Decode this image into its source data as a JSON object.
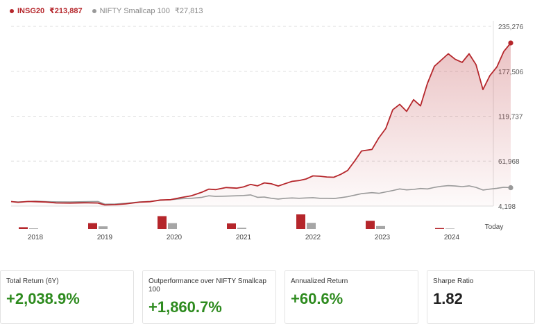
{
  "legend": {
    "primary": {
      "name": "INSG20",
      "value": "₹213,887",
      "color": "#b5262b"
    },
    "secondary": {
      "name": "NIFTY Smallcap 100",
      "value": "₹27,813",
      "color": "#999999"
    }
  },
  "chart_data": {
    "type": "line",
    "y_ticks": [
      "235,276",
      "177,506",
      "119,737",
      "61,968",
      "4,198"
    ],
    "y_tick_values": [
      235276,
      177506,
      119737,
      61968,
      4198
    ],
    "ylim": [
      4198,
      235276
    ],
    "x_labels": [
      "2018",
      "2019",
      "2020",
      "2021",
      "2022",
      "2023",
      "2024",
      "Today"
    ],
    "x_label_positions": [
      2018.0,
      2019.0,
      2020.0,
      2021.0,
      2022.0,
      2023.0,
      2024.0,
      2024.55
    ],
    "xlim": [
      2017.65,
      2024.6
    ],
    "series": [
      {
        "name": "INSG20",
        "color": "#b5262b",
        "points": [
          [
            2017.65,
            10000
          ],
          [
            2017.75,
            9000
          ],
          [
            2017.9,
            10100
          ],
          [
            2018.0,
            9800
          ],
          [
            2018.15,
            9400
          ],
          [
            2018.3,
            8200
          ],
          [
            2018.5,
            8000
          ],
          [
            2018.7,
            8400
          ],
          [
            2018.9,
            8100
          ],
          [
            2019.0,
            5600
          ],
          [
            2019.15,
            6000
          ],
          [
            2019.3,
            7000
          ],
          [
            2019.5,
            9200
          ],
          [
            2019.65,
            9800
          ],
          [
            2019.8,
            12000
          ],
          [
            2019.95,
            12400
          ],
          [
            2020.1,
            15200
          ],
          [
            2020.25,
            17500
          ],
          [
            2020.4,
            22000
          ],
          [
            2020.5,
            26000
          ],
          [
            2020.6,
            25300
          ],
          [
            2020.75,
            28000
          ],
          [
            2020.9,
            27200
          ],
          [
            2021.0,
            28800
          ],
          [
            2021.1,
            32000
          ],
          [
            2021.2,
            30200
          ],
          [
            2021.3,
            34000
          ],
          [
            2021.4,
            32800
          ],
          [
            2021.5,
            30000
          ],
          [
            2021.6,
            33000
          ],
          [
            2021.7,
            36000
          ],
          [
            2021.8,
            37000
          ],
          [
            2021.9,
            39000
          ],
          [
            2022.0,
            43000
          ],
          [
            2022.1,
            42600
          ],
          [
            2022.2,
            41600
          ],
          [
            2022.3,
            41200
          ],
          [
            2022.4,
            45000
          ],
          [
            2022.5,
            50000
          ],
          [
            2022.6,
            62000
          ],
          [
            2022.7,
            75000
          ],
          [
            2022.85,
            77000
          ],
          [
            2022.95,
            92000
          ],
          [
            2023.05,
            104000
          ],
          [
            2023.15,
            128000
          ],
          [
            2023.25,
            135000
          ],
          [
            2023.35,
            126000
          ],
          [
            2023.45,
            141000
          ],
          [
            2023.55,
            133000
          ],
          [
            2023.65,
            162000
          ],
          [
            2023.75,
            184000
          ],
          [
            2023.85,
            192000
          ],
          [
            2023.95,
            200000
          ],
          [
            2024.05,
            193000
          ],
          [
            2024.15,
            189000
          ],
          [
            2024.25,
            200000
          ],
          [
            2024.35,
            186000
          ],
          [
            2024.45,
            154000
          ],
          [
            2024.55,
            172000
          ],
          [
            2024.65,
            183000
          ],
          [
            2024.75,
            203000
          ],
          [
            2024.85,
            213887
          ]
        ]
      },
      {
        "name": "NIFTY Smallcap 100",
        "color": "#999999",
        "points": [
          [
            2017.65,
            10000
          ],
          [
            2017.75,
            9500
          ],
          [
            2017.9,
            10100
          ],
          [
            2018.0,
            10500
          ],
          [
            2018.15,
            10000
          ],
          [
            2018.3,
            9600
          ],
          [
            2018.5,
            9500
          ],
          [
            2018.7,
            9800
          ],
          [
            2018.9,
            10100
          ],
          [
            2019.0,
            6600
          ],
          [
            2019.15,
            6800
          ],
          [
            2019.3,
            7800
          ],
          [
            2019.5,
            9500
          ],
          [
            2019.65,
            10200
          ],
          [
            2019.8,
            11600
          ],
          [
            2019.95,
            12400
          ],
          [
            2020.1,
            13600
          ],
          [
            2020.25,
            14200
          ],
          [
            2020.4,
            15400
          ],
          [
            2020.5,
            17400
          ],
          [
            2020.6,
            16600
          ],
          [
            2020.75,
            17000
          ],
          [
            2020.9,
            17400
          ],
          [
            2021.0,
            17800
          ],
          [
            2021.1,
            18600
          ],
          [
            2021.2,
            15400
          ],
          [
            2021.3,
            15800
          ],
          [
            2021.4,
            14200
          ],
          [
            2021.5,
            13200
          ],
          [
            2021.6,
            14200
          ],
          [
            2021.7,
            14600
          ],
          [
            2021.8,
            14200
          ],
          [
            2021.9,
            14600
          ],
          [
            2022.0,
            15000
          ],
          [
            2022.1,
            14200
          ],
          [
            2022.2,
            14200
          ],
          [
            2022.3,
            13800
          ],
          [
            2022.4,
            15000
          ],
          [
            2022.5,
            16200
          ],
          [
            2022.6,
            18200
          ],
          [
            2022.7,
            20200
          ],
          [
            2022.85,
            21400
          ],
          [
            2022.95,
            20600
          ],
          [
            2023.05,
            22400
          ],
          [
            2023.15,
            24200
          ],
          [
            2023.25,
            26200
          ],
          [
            2023.35,
            25000
          ],
          [
            2023.45,
            25600
          ],
          [
            2023.55,
            26800
          ],
          [
            2023.65,
            26200
          ],
          [
            2023.75,
            28200
          ],
          [
            2023.85,
            29600
          ],
          [
            2023.95,
            30400
          ],
          [
            2024.05,
            30000
          ],
          [
            2024.15,
            29200
          ],
          [
            2024.25,
            30200
          ],
          [
            2024.35,
            28200
          ],
          [
            2024.45,
            24800
          ],
          [
            2024.55,
            26000
          ],
          [
            2024.65,
            27000
          ],
          [
            2024.75,
            28400
          ],
          [
            2024.85,
            27813
          ]
        ]
      }
    ],
    "annual_bars": {
      "years": [
        "2018",
        "2019",
        "2020",
        "2021",
        "2022",
        "2023",
        "2024"
      ],
      "positions": [
        2017.9,
        2018.9,
        2019.9,
        2020.9,
        2021.9,
        2022.9,
        2023.9
      ],
      "INSG20": [
        12,
        40,
        88,
        38,
        100,
        56,
        6
      ],
      "NIFTY Smallcap 100": [
        4,
        18,
        40,
        8,
        42,
        20,
        3
      ]
    }
  },
  "stats": [
    {
      "label": "Total Return (6Y)",
      "value": "+2,038.9%",
      "positive": true
    },
    {
      "label": "Outperformance over NIFTY Smallcap 100",
      "value": "+1,860.7%",
      "positive": true
    },
    {
      "label": "Annualized Return",
      "value": "+60.6%",
      "positive": true
    },
    {
      "label": "Sharpe Ratio",
      "value": "1.82",
      "positive": false
    }
  ]
}
